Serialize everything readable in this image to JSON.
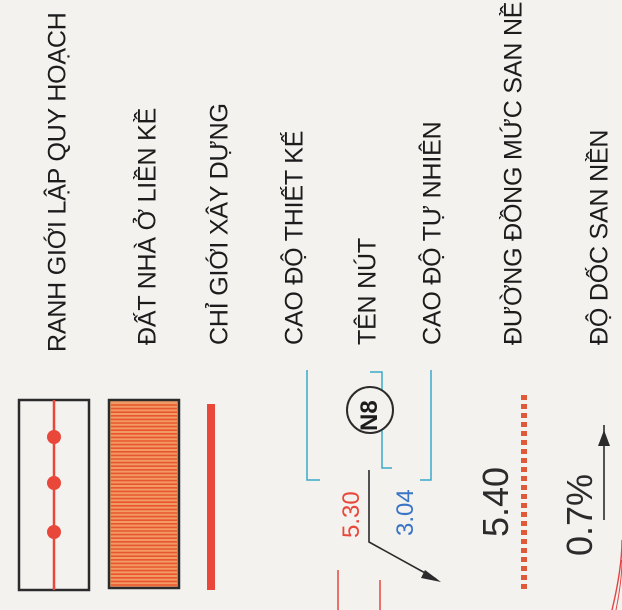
{
  "legend": {
    "items": [
      {
        "label": "RANH GIỚI LẬP QUY HOẠCH"
      },
      {
        "label": "ĐẤT NHÀ Ở LIỀN KỀ"
      },
      {
        "label": "CHỈ GIỚI XÂY DỰNG"
      },
      {
        "label": "CAO ĐỘ THIẾT KẾ"
      },
      {
        "label": "TÊN NÚT"
      },
      {
        "label": "CAO ĐỘ TỰ NHIÊN"
      },
      {
        "label": "ĐƯỜNG ĐỒNG MỨC SAN NỀN"
      },
      {
        "label": "ĐỘ DỐC SAN NỀN"
      }
    ]
  },
  "symbols": {
    "design_elevation": "5.30",
    "node_name": "N8",
    "natural_elevation": "3.04",
    "contour_value": "5.40",
    "slope_value": "0.7%"
  },
  "colors": {
    "red": "#e8473a",
    "blue": "#3a74c7",
    "cyan": "#3aa9c9",
    "orange_red": "#f05a3c",
    "dark": "#2b2b2b"
  }
}
